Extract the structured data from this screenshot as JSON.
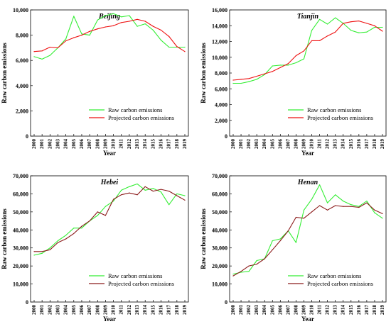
{
  "chart_data": [
    {
      "type": "line",
      "title": "Beijing",
      "xlabel": "Year",
      "ylabel": "Raw carbon emissions",
      "x": [
        "2000",
        "2001",
        "2002",
        "2003",
        "2004",
        "2005",
        "2006",
        "2007",
        "2008",
        "2009",
        "2010",
        "2011",
        "2012",
        "2013",
        "2014",
        "2015",
        "2016",
        "2017",
        "2018",
        "2019"
      ],
      "ylim": [
        0,
        10000
      ],
      "yticks": [
        "0",
        "2,000",
        "4,000",
        "6,000",
        "8,000",
        "10,000"
      ],
      "legend_position": "bottom-right",
      "series": [
        {
          "name": "Raw carbon emissions",
          "color": "#33ee33",
          "values": [
            6300,
            6100,
            6400,
            7000,
            7700,
            9500,
            8100,
            8000,
            9200,
            9550,
            9700,
            9450,
            9550,
            8700,
            8900,
            8400,
            7600,
            7050,
            7050,
            7050
          ]
        },
        {
          "name": "Projected carbon emissions",
          "color": "#ee1111",
          "values": [
            6700,
            6750,
            7050,
            7000,
            7550,
            7800,
            8000,
            8300,
            8500,
            8650,
            8750,
            9000,
            9100,
            9250,
            9100,
            8700,
            8400,
            7900,
            7100,
            6700
          ]
        }
      ]
    },
    {
      "type": "line",
      "title": "Tianjin",
      "xlabel": "Year",
      "ylabel": "Raw carbon emissions",
      "x": [
        "2000",
        "2001",
        "2002",
        "2003",
        "2004",
        "2005",
        "2006",
        "2007",
        "2008",
        "2009",
        "2010",
        "2011",
        "2012",
        "2013",
        "2014",
        "2015",
        "2016",
        "2017",
        "2018",
        "2019"
      ],
      "ylim": [
        0,
        16000
      ],
      "yticks": [
        "0",
        "2,000",
        "4,000",
        "6,000",
        "8,000",
        "10,000",
        "12,000",
        "14,000",
        "16,000"
      ],
      "legend_position": "bottom-right",
      "series": [
        {
          "name": "Raw carbon emissions",
          "color": "#33ee33",
          "values": [
            6700,
            6700,
            6900,
            7200,
            7800,
            8900,
            9000,
            9000,
            9300,
            9800,
            13400,
            14800,
            14200,
            15000,
            14300,
            13400,
            13100,
            13200,
            13800,
            13800
          ]
        },
        {
          "name": "Projected carbon emissions",
          "color": "#ee1111",
          "values": [
            7100,
            7200,
            7300,
            7600,
            7900,
            8200,
            8700,
            9200,
            10200,
            10800,
            12100,
            12100,
            12700,
            13200,
            14300,
            14500,
            14600,
            14300,
            14000,
            13300
          ]
        }
      ]
    },
    {
      "type": "line",
      "title": "Hebei",
      "xlabel": "Year",
      "ylabel": "Raw carbon emissions",
      "x": [
        "2000",
        "2001",
        "2002",
        "2003",
        "2004",
        "2005",
        "2006",
        "2007",
        "2008",
        "2009",
        "2010",
        "2011",
        "2012",
        "2013",
        "2014",
        "2015",
        "2016",
        "2017",
        "2018",
        "2019"
      ],
      "ylim": [
        0,
        70000
      ],
      "yticks": [
        "0",
        "10,000",
        "20,000",
        "30,000",
        "40,000",
        "50,000",
        "60,000",
        "70,000"
      ],
      "legend_position": "bottom-right",
      "series": [
        {
          "name": "Raw carbon emissions",
          "color": "#33ee33",
          "values": [
            26000,
            27000,
            30000,
            34000,
            37000,
            41000,
            41000,
            45000,
            48000,
            53000,
            56000,
            62000,
            64000,
            65500,
            62000,
            63000,
            61000,
            54000,
            60000,
            59000
          ]
        },
        {
          "name": "Projected carbon emissions",
          "color": "#8b1a1a",
          "values": [
            28000,
            28000,
            29000,
            33000,
            35000,
            38000,
            42000,
            45000,
            50000,
            48000,
            57000,
            59500,
            60500,
            59500,
            64000,
            61500,
            62500,
            61500,
            59000,
            56500
          ]
        }
      ]
    },
    {
      "type": "line",
      "title": "Henan",
      "xlabel": "Year",
      "ylabel": "Raw carbon emissions",
      "x": [
        "2000",
        "2001",
        "2002",
        "2003",
        "2004",
        "2005",
        "2006",
        "2007",
        "2008",
        "2009",
        "2010",
        "2011",
        "2012",
        "2013",
        "2014",
        "2015",
        "2016",
        "2017",
        "2018",
        "2019"
      ],
      "ylim": [
        0,
        70000
      ],
      "yticks": [
        "0",
        "10,000",
        "20,000",
        "30,000",
        "40,000",
        "50,000",
        "60,000",
        "70,000"
      ],
      "legend_position": "bottom-right",
      "series": [
        {
          "name": "Raw carbon emissions",
          "color": "#33ee33",
          "values": [
            15500,
            16500,
            17000,
            23000,
            24000,
            34000,
            35000,
            39500,
            33000,
            51000,
            57000,
            65000,
            55000,
            59500,
            56000,
            54000,
            53000,
            56000,
            49500,
            46500
          ]
        },
        {
          "name": "Projected carbon emissions",
          "color": "#8b1a1a",
          "values": [
            14500,
            17000,
            20000,
            21000,
            24000,
            29000,
            34000,
            39500,
            47000,
            46500,
            50000,
            53500,
            51000,
            53500,
            53000,
            53000,
            52500,
            55000,
            51000,
            49000
          ]
        }
      ]
    }
  ]
}
